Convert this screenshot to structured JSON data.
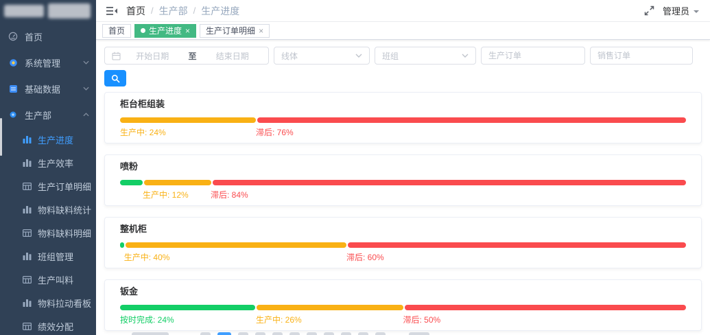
{
  "app": {
    "user_name": "管理员",
    "colors": {
      "primary": "#409eff",
      "search_button": "#1890ff",
      "tab_active_green": "#42b983",
      "bar_green": "#13ce66",
      "bar_yellow": "#f9b115",
      "bar_red": "#fa4b4e"
    }
  },
  "navbar": {
    "breadcrumb": [
      "首页",
      "生产部",
      "生产进度"
    ],
    "separator": "/"
  },
  "tabs": [
    {
      "label": "首页",
      "active": false,
      "closable": false
    },
    {
      "label": "生产进度",
      "active": true,
      "closable": true
    },
    {
      "label": "生产订单明细",
      "active": false,
      "closable": true
    }
  ],
  "sidebar": {
    "top_items": [
      {
        "label": "首页",
        "icon": "dashboard-icon",
        "arrow": null
      },
      {
        "label": "系统管理",
        "icon": "system-icon",
        "arrow": "down"
      },
      {
        "label": "基础数据",
        "icon": "database-icon",
        "arrow": "down"
      },
      {
        "label": "生产部",
        "icon": "dot-icon",
        "arrow": "up"
      }
    ],
    "sub_items": [
      {
        "label": "生产进度",
        "icon": "bar-chart-icon",
        "active": true
      },
      {
        "label": "生产效率",
        "icon": "bar-chart-icon",
        "active": false
      },
      {
        "label": "生产订单明细",
        "icon": "table-icon",
        "active": false
      },
      {
        "label": "物料缺料统计",
        "icon": "bar-chart-icon",
        "active": false
      },
      {
        "label": "物料缺料明细",
        "icon": "table-icon",
        "active": false
      },
      {
        "label": "班组管理",
        "icon": "bar-chart-icon",
        "active": false
      },
      {
        "label": "生产叫料",
        "icon": "table-icon",
        "active": false
      },
      {
        "label": "物料拉动看板",
        "icon": "bar-chart-icon",
        "active": false
      },
      {
        "label": "绩效分配",
        "icon": "table-icon",
        "active": false
      }
    ]
  },
  "filters": {
    "date_start_placeholder": "开始日期",
    "date_separator": "至",
    "date_end_placeholder": "结束日期",
    "line_placeholder": "线体",
    "team_placeholder": "班组",
    "production_order_placeholder": "生产订单",
    "sales_order_placeholder": "销售订单"
  },
  "cards": [
    {
      "title": "柜台柜组装",
      "segments": [
        {
          "name": "生产中",
          "percent": 24,
          "color": "bar_yellow",
          "show_label": true
        },
        {
          "name": "滞后",
          "percent": 76,
          "color": "bar_red",
          "show_label": true
        }
      ]
    },
    {
      "title": "喷粉",
      "segments": [
        {
          "name": "按时完成",
          "percent": 4,
          "color": "bar_green",
          "show_label": false
        },
        {
          "name": "生产中",
          "percent": 12,
          "color": "bar_yellow",
          "show_label": true
        },
        {
          "name": "滞后",
          "percent": 84,
          "color": "bar_red",
          "show_label": true
        }
      ]
    },
    {
      "title": "整机柜",
      "segments": [
        {
          "name": "按时完成",
          "percent": 0.7,
          "color": "bar_green",
          "show_label": false
        },
        {
          "name": "生产中",
          "percent": 39.3,
          "display_percent": 40,
          "color": "bar_yellow",
          "show_label": true
        },
        {
          "name": "滞后",
          "percent": 60,
          "color": "bar_red",
          "show_label": true
        }
      ]
    },
    {
      "title": "钣金",
      "segments": [
        {
          "name": "按时完成",
          "percent": 24,
          "color": "bar_green",
          "show_label": true
        },
        {
          "name": "生产中",
          "percent": 26,
          "color": "bar_yellow",
          "show_label": true
        },
        {
          "name": "滞后",
          "percent": 50,
          "color": "bar_red",
          "show_label": true
        }
      ]
    }
  ],
  "label_format": "{name}: {percent}%",
  "pagination": {
    "items": [
      "sizes",
      "prev",
      "current",
      "page",
      "page",
      "page",
      "page",
      "page",
      "page",
      "page",
      "page",
      "next",
      "jumper"
    ]
  }
}
